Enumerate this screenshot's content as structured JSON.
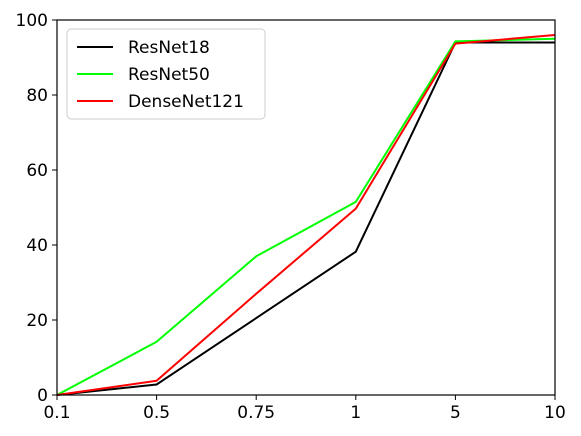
{
  "chart_data": {
    "type": "line",
    "categories": [
      "0.1",
      "0.5",
      "0.75",
      "1",
      "5",
      "10"
    ],
    "series": [
      {
        "name": "ResNet18",
        "color": "#000000",
        "values": [
          0,
          2.8,
          20.5,
          38.2,
          94.0,
          94.0
        ]
      },
      {
        "name": "ResNet50",
        "color": "#00ff00",
        "values": [
          0,
          14.2,
          37.0,
          51.5,
          94.3,
          95.0
        ]
      },
      {
        "name": "DenseNet121",
        "color": "#ff0000",
        "values": [
          0,
          3.8,
          27.0,
          49.7,
          93.7,
          96.0
        ]
      }
    ],
    "ylim": [
      0,
      100
    ],
    "yticks": [
      0,
      20,
      40,
      60,
      80,
      100
    ],
    "grid": false,
    "legend_position": "top-left"
  }
}
